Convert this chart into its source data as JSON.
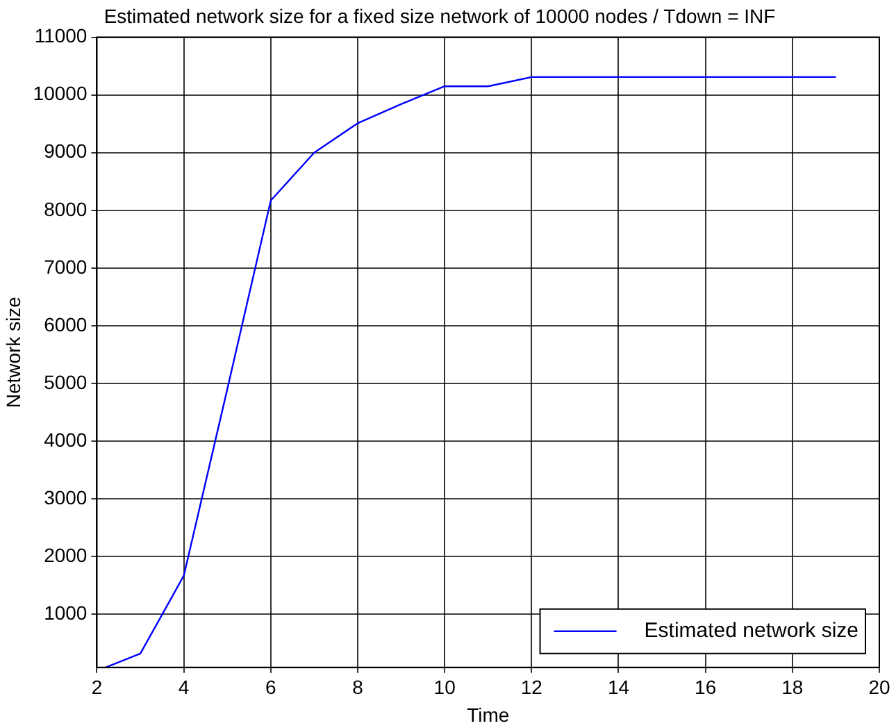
{
  "chart_data": {
    "type": "line",
    "title": "Estimated network size for a fixed size network of 10000 nodes / Tdown = INF",
    "xlabel": "Time",
    "ylabel": "Network size",
    "x": [
      2.2,
      3,
      4,
      5,
      6,
      7,
      8,
      9,
      10,
      11,
      12,
      13,
      14,
      15,
      16,
      17,
      18,
      19
    ],
    "series": [
      {
        "name": "Estimated network size",
        "color": "#0000ff",
        "values": [
          80,
          320,
          1670,
          4900,
          8170,
          9000,
          9510,
          9840,
          10150,
          10150,
          10310,
          10310,
          10310,
          10310,
          10310,
          10310,
          10310,
          10310
        ]
      }
    ],
    "xlim": [
      2,
      20
    ],
    "xticks": [
      2,
      4,
      6,
      8,
      10,
      12,
      14,
      16,
      18,
      20
    ],
    "ylim": [
      80,
      11000
    ],
    "yticks": [
      1000,
      2000,
      3000,
      4000,
      5000,
      6000,
      7000,
      8000,
      9000,
      10000,
      11000
    ],
    "grid": true,
    "legend": "bottom right",
    "marker": "none",
    "line_style": "solid"
  }
}
